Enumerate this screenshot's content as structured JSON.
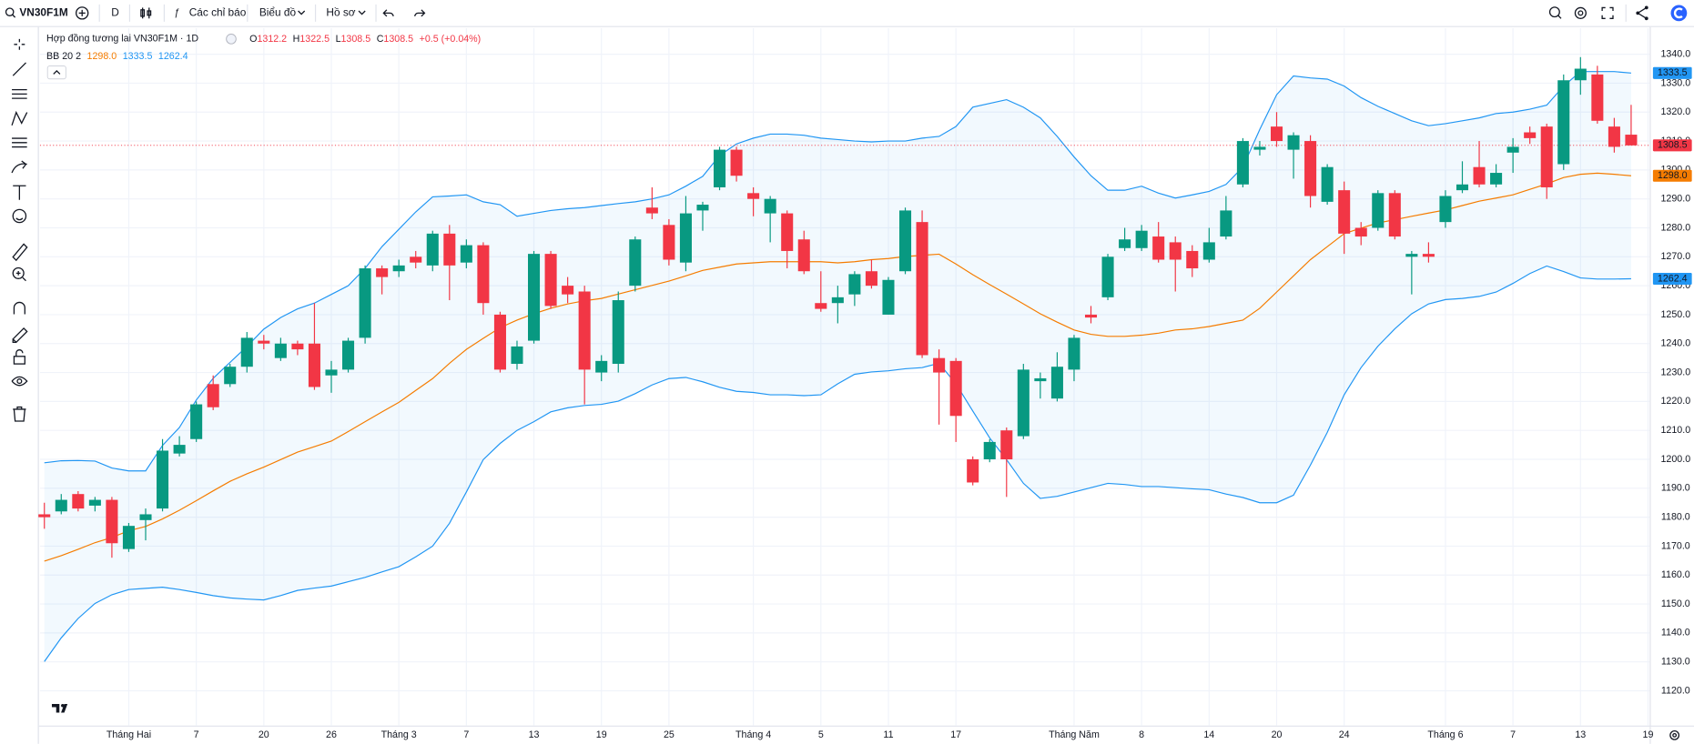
{
  "toolbar": {
    "symbol": "VN30F1M",
    "interval": "D",
    "indicators": "Các chỉ báo",
    "chart": "Biểu đồ",
    "profile": "Hồ sơ"
  },
  "chart_data": {
    "type": "candlestick",
    "title": "Hợp đồng tương lai VN30F1M · 1D",
    "ohlc_header": [
      {
        "key": "O",
        "value": "1312.2"
      },
      {
        "key": "H",
        "value": "1322.5"
      },
      {
        "key": "L",
        "value": "1308.5"
      },
      {
        "key": "C",
        "value": "1308.5"
      }
    ],
    "change": "+0.5 (+0.04%)",
    "indicator": {
      "name": "BB 20 2",
      "values": [
        "1298.0",
        "1333.5",
        "1262.4"
      ]
    },
    "up_color": "#089981",
    "down_color": "#f23645",
    "xlim": [
      -0.26,
      95.1
    ],
    "xticks": [
      {
        "value": 5,
        "label": "Tháng Hai"
      },
      {
        "value": 9,
        "label": "7"
      },
      {
        "value": 13,
        "label": "20"
      },
      {
        "value": 17,
        "label": "26"
      },
      {
        "value": 21,
        "label": "Tháng 3"
      },
      {
        "value": 25,
        "label": "7"
      },
      {
        "value": 29,
        "label": "13"
      },
      {
        "value": 33,
        "label": "19"
      },
      {
        "value": 37,
        "label": "25"
      },
      {
        "value": 42,
        "label": "Tháng 4"
      },
      {
        "value": 46,
        "label": "5"
      },
      {
        "value": 50,
        "label": "11"
      },
      {
        "value": 54,
        "label": "17"
      },
      {
        "value": 61,
        "label": "Tháng Năm"
      },
      {
        "value": 65,
        "label": "8"
      },
      {
        "value": 69,
        "label": "14"
      },
      {
        "value": 73,
        "label": "20"
      },
      {
        "value": 77,
        "label": "24"
      },
      {
        "value": 83,
        "label": "Tháng 6"
      },
      {
        "value": 87,
        "label": "7"
      },
      {
        "value": 91,
        "label": "13"
      },
      {
        "value": 95,
        "label": "19"
      }
    ],
    "ylim": [
      1108,
      1349
    ],
    "yticks": [
      {
        "value": 1120,
        "label": "1120.0"
      },
      {
        "value": 1130,
        "label": "1130.0"
      },
      {
        "value": 1140,
        "label": "1140.0"
      },
      {
        "value": 1150,
        "label": "1150.0"
      },
      {
        "value": 1160,
        "label": "1160.0"
      },
      {
        "value": 1170,
        "label": "1170.0"
      },
      {
        "value": 1180,
        "label": "1180.0"
      },
      {
        "value": 1190,
        "label": "1190.0"
      },
      {
        "value": 1200,
        "label": "1200.0"
      },
      {
        "value": 1210,
        "label": "1210.0"
      },
      {
        "value": 1220,
        "label": "1220.0"
      },
      {
        "value": 1230,
        "label": "1230.0"
      },
      {
        "value": 1240,
        "label": "1240.0"
      },
      {
        "value": 1250,
        "label": "1250.0"
      },
      {
        "value": 1260,
        "label": "1260.0"
      },
      {
        "value": 1270,
        "label": "1270.0"
      },
      {
        "value": 1280,
        "label": "1280.0"
      },
      {
        "value": 1290,
        "label": "1290.0"
      },
      {
        "value": 1300,
        "label": "1300.0"
      },
      {
        "value": 1310,
        "label": "1310.0"
      },
      {
        "value": 1320,
        "label": "1320.0"
      },
      {
        "value": 1330,
        "label": "1330.0"
      },
      {
        "value": 1340,
        "label": "1340.0"
      }
    ],
    "grid": true,
    "open": [
      1181,
      1182,
      1188,
      1184,
      1186,
      1169,
      1179,
      1183,
      1202,
      1207,
      1226,
      1226,
      1232,
      1241,
      1235,
      1240,
      1240,
      1229,
      1231,
      1242,
      1266,
      1265,
      1270,
      1267,
      1278,
      1268,
      1274,
      1250,
      1233,
      1241,
      1271,
      1260,
      1258,
      1230,
      1233,
      1260,
      1287,
      1281,
      1268,
      1286,
      1294,
      1307,
      1292,
      1285,
      1285,
      1276,
      1254,
      1254,
      1257,
      1265,
      1250,
      1265,
      1282,
      1235,
      1234,
      1200,
      1200,
      1210,
      1208,
      1227,
      1221,
      1231,
      1250,
      1256,
      1273,
      1273,
      1277,
      1275,
      1272,
      1269,
      1277,
      1295,
      1307,
      1315,
      1307,
      1310,
      1289,
      1293,
      1280,
      1280,
      1292,
      1270,
      1271,
      1282,
      1293,
      1301,
      1295,
      1306,
      1313,
      1315,
      1302,
      1331,
      1333,
      1315,
      1312.2
    ],
    "high": [
      1185,
      1188,
      1189,
      1187,
      1187,
      1178,
      1183,
      1207,
      1208,
      1220,
      1229,
      1233,
      1244,
      1243,
      1242,
      1241,
      1254,
      1234,
      1242,
      1267,
      1267,
      1269,
      1272,
      1279,
      1281,
      1276,
      1275,
      1251,
      1241,
      1272,
      1272,
      1263,
      1260,
      1236,
      1258,
      1277,
      1294,
      1283,
      1291,
      1289,
      1308,
      1308,
      1294,
      1291,
      1286,
      1279,
      1265,
      1260,
      1265,
      1269,
      1263,
      1287,
      1286,
      1238,
      1235,
      1201,
      1207,
      1211,
      1233,
      1230,
      1237,
      1243,
      1253,
      1271,
      1280,
      1281,
      1282,
      1277,
      1274,
      1280,
      1291,
      1311,
      1310,
      1320,
      1313,
      1312,
      1302,
      1296,
      1282,
      1293,
      1293,
      1272,
      1275,
      1293,
      1303,
      1310,
      1302,
      1311,
      1315,
      1316,
      1333,
      1339,
      1336,
      1318,
      1322.5
    ],
    "low": [
      1176,
      1181,
      1182,
      1182,
      1166,
      1168,
      1172,
      1182,
      1201,
      1206,
      1217,
      1225,
      1230,
      1238,
      1234,
      1236,
      1224,
      1223,
      1230,
      1240,
      1257,
      1263,
      1266,
      1265,
      1255,
      1266,
      1250,
      1230,
      1231,
      1240,
      1252,
      1254,
      1219,
      1227,
      1230,
      1258,
      1283,
      1267,
      1265,
      1279,
      1293,
      1296,
      1284,
      1275,
      1266,
      1264,
      1251,
      1247,
      1253,
      1259,
      1250,
      1264,
      1235,
      1212,
      1206,
      1191,
      1199,
      1187,
      1207,
      1221,
      1220,
      1227,
      1247,
      1255,
      1272,
      1272,
      1268,
      1258,
      1263,
      1268,
      1276,
      1294,
      1305,
      1308,
      1297,
      1287,
      1288,
      1271,
      1274,
      1279,
      1276,
      1257,
      1268,
      1280,
      1292,
      1294,
      1294,
      1299,
      1309,
      1290,
      1300,
      1326,
      1316,
      1306,
      1308.5
    ],
    "close": [
      1180,
      1186,
      1183,
      1186,
      1171,
      1177,
      1181,
      1203,
      1205,
      1219,
      1218,
      1232,
      1242,
      1240,
      1240,
      1238,
      1225,
      1231,
      1241,
      1266,
      1263,
      1267,
      1268,
      1278,
      1267,
      1274,
      1254,
      1231,
      1239,
      1271,
      1253,
      1257,
      1231,
      1234,
      1255,
      1276,
      1285,
      1269,
      1285,
      1288,
      1307,
      1298,
      1290,
      1290,
      1272,
      1265,
      1252,
      1256,
      1264,
      1260,
      1262,
      1286,
      1236,
      1230,
      1215,
      1192,
      1206,
      1200,
      1231,
      1228,
      1232,
      1242,
      1249,
      1270,
      1276,
      1279,
      1269,
      1269,
      1266,
      1275,
      1286,
      1310,
      1308,
      1310,
      1312,
      1291,
      1301,
      1278,
      1277,
      1292,
      1277,
      1271,
      1270,
      1291,
      1295,
      1295,
      1299,
      1308,
      1311,
      1294,
      1331,
      1335,
      1317,
      1308,
      1308.5
    ],
    "bollinger": {
      "upper_color": "#2196f3",
      "basis_color": "#f57c00",
      "fill": "rgba(33,150,243,0.06)",
      "upper": [
        1198.8,
        1199.5,
        1199.6,
        1199.4,
        1197,
        1196,
        1196,
        1204.8,
        1211,
        1220.5,
        1228,
        1233.5,
        1239,
        1245,
        1249,
        1252,
        1254,
        1257,
        1260,
        1266,
        1273.5,
        1279.5,
        1285.5,
        1290.7,
        1291,
        1291.4,
        1289,
        1288,
        1284,
        1285,
        1286,
        1286.6,
        1287,
        1287.7,
        1288.4,
        1289,
        1290,
        1291.4,
        1294.4,
        1297.8,
        1305,
        1309,
        1311,
        1312.4,
        1312.4,
        1312,
        1311,
        1310.5,
        1310,
        1309.7,
        1310,
        1310,
        1311,
        1311.6,
        1315,
        1321.7,
        1323,
        1324.3,
        1321.7,
        1318,
        1311.6,
        1304.5,
        1298,
        1293,
        1293,
        1294.4,
        1292,
        1290.3,
        1291.4,
        1292.6,
        1295,
        1301,
        1314,
        1326,
        1332.5,
        1331.8,
        1331.4,
        1329,
        1325,
        1322,
        1319.5,
        1317,
        1315.3,
        1316,
        1317,
        1318,
        1319.5,
        1320,
        1321,
        1322.4,
        1329,
        1334,
        1334,
        1334,
        1333.5
      ],
      "basis": [
        1164.8,
        1166.7,
        1168.9,
        1171.2,
        1173,
        1175.3,
        1176.8,
        1179.4,
        1182.4,
        1185.7,
        1189.1,
        1192.4,
        1195,
        1197.3,
        1199.9,
        1202.5,
        1204.4,
        1206.3,
        1209.6,
        1213,
        1216.4,
        1219.7,
        1223.8,
        1227.9,
        1233.2,
        1238,
        1241.8,
        1245.5,
        1248.1,
        1250.3,
        1252.2,
        1253.7,
        1254.8,
        1255.6,
        1257.1,
        1258.6,
        1260.1,
        1261.6,
        1263.4,
        1265.3,
        1266.4,
        1267.5,
        1267.9,
        1268.3,
        1268.3,
        1268.3,
        1268.3,
        1267.9,
        1268.3,
        1269,
        1269.4,
        1270.1,
        1270.5,
        1270.9,
        1267.5,
        1263.8,
        1260.4,
        1257.1,
        1253.7,
        1250.3,
        1247.4,
        1244.7,
        1243.2,
        1242.5,
        1242.5,
        1242.9,
        1243.6,
        1244.7,
        1245.1,
        1245.9,
        1247,
        1248.1,
        1252.2,
        1257.8,
        1263.4,
        1269,
        1273.5,
        1278,
        1279.9,
        1281.7,
        1282.8,
        1284,
        1285.1,
        1286.2,
        1287.7,
        1289.2,
        1290.3,
        1291.4,
        1293.3,
        1295.2,
        1297.4,
        1298.5,
        1298.9,
        1298.5,
        1298
      ],
      "lower": [
        1130.1,
        1138.3,
        1145,
        1150.2,
        1153.2,
        1155,
        1155.4,
        1155.8,
        1155,
        1154,
        1152.9,
        1152.1,
        1151.7,
        1151.4,
        1152.9,
        1154.7,
        1155.5,
        1156.2,
        1157.7,
        1159.2,
        1161.1,
        1162.9,
        1166.3,
        1170,
        1177.9,
        1188.7,
        1199.9,
        1205.5,
        1210,
        1213,
        1216.4,
        1217.8,
        1218.6,
        1219,
        1220.1,
        1222.7,
        1225.7,
        1227.9,
        1228.3,
        1226.8,
        1224.9,
        1223.5,
        1223.1,
        1222.3,
        1222.3,
        1222,
        1222.3,
        1226.1,
        1229.4,
        1230.2,
        1230.6,
        1231.3,
        1231.7,
        1233.2,
        1226.1,
        1216.7,
        1207.4,
        1199.9,
        1191.7,
        1186.5,
        1187.2,
        1188.7,
        1190.2,
        1191.7,
        1191.3,
        1190.6,
        1190.6,
        1190.2,
        1189.8,
        1189.5,
        1188,
        1186.8,
        1185,
        1185,
        1187.6,
        1198,
        1209.3,
        1222.3,
        1231.7,
        1239.1,
        1245.1,
        1250.3,
        1253.7,
        1255.2,
        1255.6,
        1256.3,
        1257.8,
        1260.8,
        1264.2,
        1266.8,
        1264.9,
        1262.7,
        1262.3,
        1262.3,
        1262.4
      ]
    }
  }
}
